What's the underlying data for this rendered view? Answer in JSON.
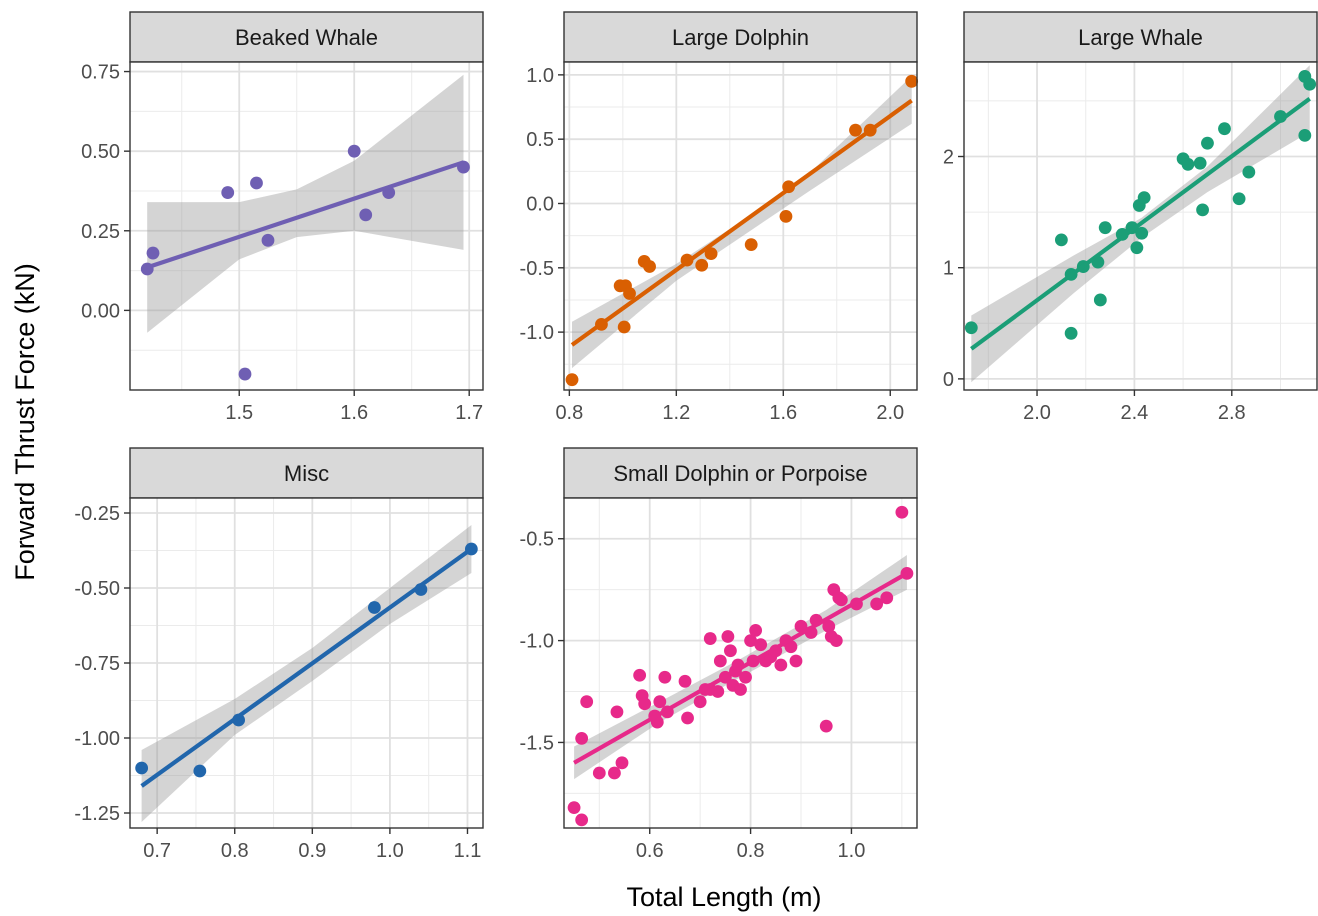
{
  "chart_data": {
    "type": "scatter",
    "facet_layout": "wrap",
    "xlabel": "Total Length (m)",
    "ylabel": "Forward Thrust Force (kN)",
    "grid": true,
    "legend": "none",
    "trend": "linear fit with confidence band",
    "facets": [
      {
        "title": "Beaked Whale",
        "color": "#6F5FB3",
        "xlim": [
          1.405,
          1.712
        ],
        "ylim": [
          -0.25,
          0.78
        ],
        "xticks": [
          1.5,
          1.6,
          1.7
        ],
        "xtick_labels": [
          "1.5",
          "1.6",
          "1.7"
        ],
        "yticks": [
          0.0,
          0.25,
          0.5,
          0.75
        ],
        "ytick_labels": [
          "0.00",
          "0.25",
          "0.50",
          "0.75"
        ],
        "points": [
          [
            1.42,
            0.13
          ],
          [
            1.425,
            0.18
          ],
          [
            1.49,
            0.37
          ],
          [
            1.505,
            -0.2
          ],
          [
            1.515,
            0.4
          ],
          [
            1.525,
            0.22
          ],
          [
            1.6,
            0.5
          ],
          [
            1.61,
            0.3
          ],
          [
            1.63,
            0.37
          ],
          [
            1.695,
            0.45
          ]
        ],
        "fit": {
          "x": [
            1.42,
            1.695
          ],
          "y": [
            0.135,
            0.465
          ]
        },
        "band": {
          "x": [
            1.42,
            1.5,
            1.55,
            1.6,
            1.695
          ],
          "lower": [
            -0.07,
            0.16,
            0.23,
            0.25,
            0.19
          ],
          "upper": [
            0.34,
            0.34,
            0.38,
            0.47,
            0.74
          ]
        }
      },
      {
        "title": "Large Dolphin",
        "color": "#D95F02",
        "xlim": [
          0.78,
          2.1
        ],
        "ylim": [
          -1.45,
          1.1
        ],
        "xticks": [
          0.8,
          1.2,
          1.6,
          2.0
        ],
        "xtick_labels": [
          "0.8",
          "1.2",
          "1.6",
          "2.0"
        ],
        "yticks": [
          -1.0,
          -0.5,
          0.0,
          0.5,
          1.0
        ],
        "ytick_labels": [
          "-1.0",
          "-0.5",
          "0.0",
          "0.5",
          "1.0"
        ],
        "points": [
          [
            0.81,
            -1.37
          ],
          [
            0.92,
            -0.94
          ],
          [
            0.99,
            -0.64
          ],
          [
            1.005,
            -0.96
          ],
          [
            1.01,
            -0.64
          ],
          [
            1.025,
            -0.7
          ],
          [
            1.08,
            -0.45
          ],
          [
            1.1,
            -0.49
          ],
          [
            1.24,
            -0.44
          ],
          [
            1.295,
            -0.48
          ],
          [
            1.33,
            -0.39
          ],
          [
            1.48,
            -0.32
          ],
          [
            1.61,
            -0.1
          ],
          [
            1.62,
            0.13
          ],
          [
            1.87,
            0.57
          ],
          [
            1.925,
            0.57
          ],
          [
            2.08,
            0.95
          ]
        ],
        "fit": {
          "x": [
            0.81,
            2.08
          ],
          "y": [
            -1.1,
            0.8
          ]
        },
        "band": {
          "x": [
            0.81,
            1.2,
            1.45,
            1.7,
            2.08
          ],
          "lower": [
            -1.28,
            -0.6,
            -0.25,
            0.1,
            0.62
          ],
          "upper": [
            -0.92,
            -0.47,
            -0.13,
            0.24,
            0.99
          ]
        }
      },
      {
        "title": "Large Whale",
        "color": "#1B9E77",
        "xlim": [
          1.7,
          3.15
        ],
        "ylim": [
          -0.1,
          2.85
        ],
        "xticks": [
          2.0,
          2.4,
          2.8
        ],
        "xtick_labels": [
          "2.0",
          "2.4",
          "2.8"
        ],
        "yticks": [
          0,
          1,
          2
        ],
        "ytick_labels": [
          "0",
          "1",
          "2"
        ],
        "points": [
          [
            1.73,
            0.46
          ],
          [
            2.1,
            1.25
          ],
          [
            2.14,
            0.41
          ],
          [
            2.14,
            0.94
          ],
          [
            2.19,
            1.01
          ],
          [
            2.25,
            1.05
          ],
          [
            2.26,
            0.71
          ],
          [
            2.28,
            1.36
          ],
          [
            2.35,
            1.3
          ],
          [
            2.39,
            1.36
          ],
          [
            2.41,
            1.18
          ],
          [
            2.42,
            1.56
          ],
          [
            2.43,
            1.31
          ],
          [
            2.44,
            1.63
          ],
          [
            2.6,
            1.98
          ],
          [
            2.62,
            1.93
          ],
          [
            2.67,
            1.94
          ],
          [
            2.68,
            1.52
          ],
          [
            2.7,
            2.12
          ],
          [
            2.77,
            2.25
          ],
          [
            2.83,
            1.62
          ],
          [
            2.87,
            1.86
          ],
          [
            3.0,
            2.36
          ],
          [
            3.1,
            2.19
          ],
          [
            3.1,
            2.72
          ],
          [
            3.12,
            2.65
          ]
        ],
        "fit": {
          "x": [
            1.73,
            3.12
          ],
          "y": [
            0.27,
            2.52
          ]
        },
        "band": {
          "x": [
            1.73,
            2.15,
            2.43,
            2.7,
            3.12
          ],
          "lower": [
            -0.03,
            0.77,
            1.27,
            1.68,
            2.22
          ],
          "upper": [
            0.57,
            1.11,
            1.45,
            1.91,
            2.82
          ]
        }
      },
      {
        "title": "Misc",
        "color": "#2166AC",
        "xlim": [
          0.665,
          1.12
        ],
        "ylim": [
          -1.3,
          -0.2
        ],
        "xticks": [
          0.7,
          0.8,
          0.9,
          1.0,
          1.1
        ],
        "xtick_labels": [
          "0.7",
          "0.8",
          "0.9",
          "1.0",
          "1.1"
        ],
        "yticks": [
          -1.25,
          -1.0,
          -0.75,
          -0.5,
          -0.25
        ],
        "ytick_labels": [
          "-1.25",
          "-1.00",
          "-0.75",
          "-0.50",
          "-0.25"
        ],
        "points": [
          [
            0.68,
            -1.1
          ],
          [
            0.755,
            -1.11
          ],
          [
            0.805,
            -0.94
          ],
          [
            0.98,
            -0.565
          ],
          [
            1.04,
            -0.505
          ],
          [
            1.105,
            -0.37
          ]
        ],
        "fit": {
          "x": [
            0.68,
            1.105
          ],
          "y": [
            -1.16,
            -0.37
          ]
        },
        "band": {
          "x": [
            0.68,
            0.8,
            0.9,
            1.0,
            1.105
          ],
          "lower": [
            -1.28,
            -0.99,
            -0.81,
            -0.62,
            -0.45
          ],
          "upper": [
            -1.04,
            -0.87,
            -0.7,
            -0.5,
            -0.29
          ]
        }
      },
      {
        "title": "Small Dolphin or Porpoise",
        "color": "#E7298A",
        "xlim": [
          0.43,
          1.13
        ],
        "ylim": [
          -1.92,
          -0.3
        ],
        "xticks": [
          0.6,
          0.8,
          1.0
        ],
        "xtick_labels": [
          "0.6",
          "0.8",
          "1.0"
        ],
        "yticks": [
          -1.5,
          -1.0,
          -0.5
        ],
        "ytick_labels": [
          "-1.5",
          "-1.0",
          "-0.5"
        ],
        "points": [
          [
            0.45,
            -1.82
          ],
          [
            0.465,
            -1.88
          ],
          [
            0.465,
            -1.48
          ],
          [
            0.475,
            -1.3
          ],
          [
            0.5,
            -1.65
          ],
          [
            0.53,
            -1.65
          ],
          [
            0.535,
            -1.35
          ],
          [
            0.545,
            -1.6
          ],
          [
            0.58,
            -1.17
          ],
          [
            0.585,
            -1.27
          ],
          [
            0.59,
            -1.31
          ],
          [
            0.61,
            -1.37
          ],
          [
            0.615,
            -1.4
          ],
          [
            0.62,
            -1.3
          ],
          [
            0.63,
            -1.18
          ],
          [
            0.635,
            -1.35
          ],
          [
            0.67,
            -1.2
          ],
          [
            0.675,
            -1.38
          ],
          [
            0.7,
            -1.3
          ],
          [
            0.71,
            -1.24
          ],
          [
            0.72,
            -1.24
          ],
          [
            0.72,
            -0.99
          ],
          [
            0.735,
            -1.25
          ],
          [
            0.74,
            -1.1
          ],
          [
            0.75,
            -1.18
          ],
          [
            0.755,
            -0.98
          ],
          [
            0.76,
            -1.05
          ],
          [
            0.765,
            -1.22
          ],
          [
            0.77,
            -1.15
          ],
          [
            0.775,
            -1.12
          ],
          [
            0.78,
            -1.24
          ],
          [
            0.79,
            -1.18
          ],
          [
            0.8,
            -1.0
          ],
          [
            0.805,
            -1.1
          ],
          [
            0.81,
            -0.95
          ],
          [
            0.82,
            -1.02
          ],
          [
            0.83,
            -1.1
          ],
          [
            0.84,
            -1.08
          ],
          [
            0.85,
            -1.05
          ],
          [
            0.86,
            -1.12
          ],
          [
            0.87,
            -1.0
          ],
          [
            0.88,
            -1.03
          ],
          [
            0.89,
            -1.1
          ],
          [
            0.9,
            -0.93
          ],
          [
            0.92,
            -0.96
          ],
          [
            0.93,
            -0.9
          ],
          [
            0.95,
            -1.42
          ],
          [
            0.955,
            -0.93
          ],
          [
            0.96,
            -0.98
          ],
          [
            0.965,
            -0.75
          ],
          [
            0.97,
            -1.0
          ],
          [
            0.975,
            -0.79
          ],
          [
            0.98,
            -0.8
          ],
          [
            1.01,
            -0.82
          ],
          [
            1.05,
            -0.82
          ],
          [
            1.07,
            -0.79
          ],
          [
            1.1,
            -0.37
          ],
          [
            1.11,
            -0.67
          ]
        ],
        "fit": {
          "x": [
            0.45,
            1.11
          ],
          "y": [
            -1.6,
            -0.67
          ]
        },
        "band": {
          "x": [
            0.45,
            0.62,
            0.78,
            0.95,
            1.11
          ],
          "lower": [
            -1.68,
            -1.4,
            -1.18,
            -0.95,
            -0.75
          ],
          "upper": [
            -1.52,
            -1.3,
            -1.09,
            -0.85,
            -0.58
          ]
        }
      }
    ]
  }
}
